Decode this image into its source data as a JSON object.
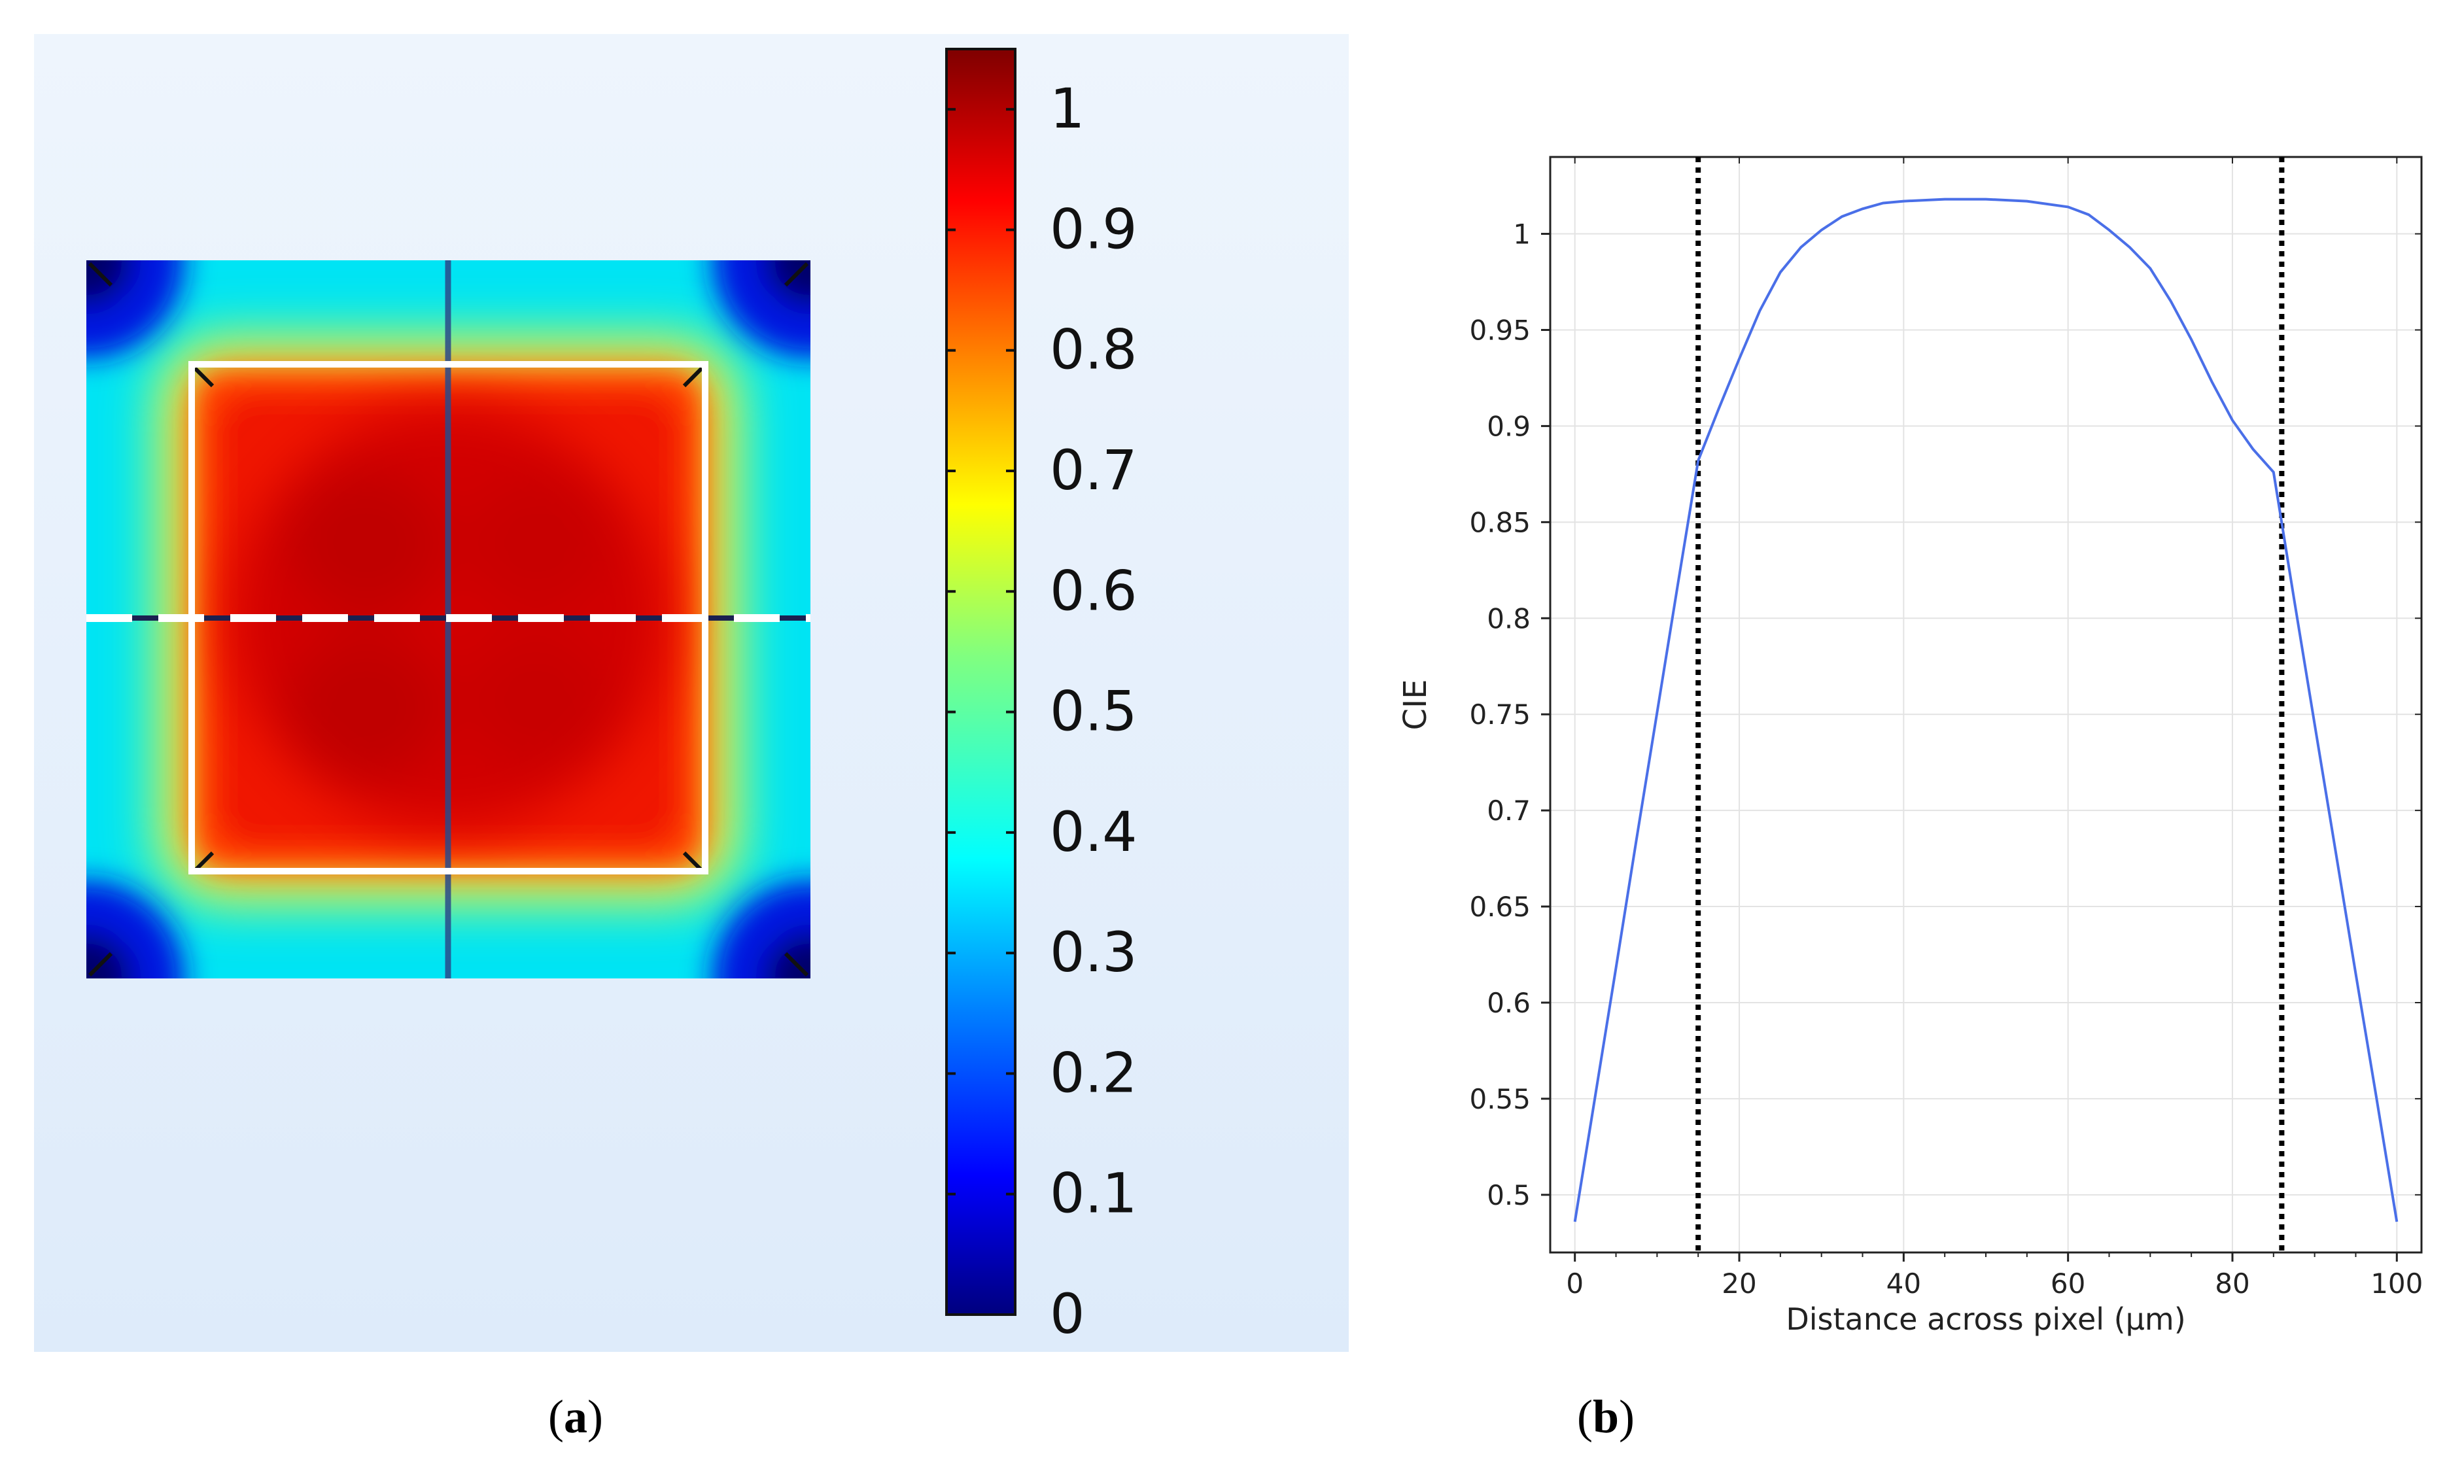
{
  "captions": {
    "a_open": "(",
    "a_letter": "a",
    "a_close": ")",
    "b_open": "(",
    "b_letter": "b",
    "b_close": ")"
  },
  "chart_data": [
    {
      "type": "heatmap",
      "panel": "a",
      "description_visible": "2D color map of a square pixel with colorbar",
      "colormap": [
        "#00007f",
        "#0000ff",
        "#0080ff",
        "#00ffff",
        "#80ff80",
        "#ffff00",
        "#ff8000",
        "#ff0000",
        "#7f0000"
      ],
      "colorbar": {
        "range": [
          0,
          1.05
        ],
        "ticks": [
          0,
          0.1,
          0.2,
          0.3,
          0.4,
          0.5,
          0.6,
          0.7,
          0.8,
          0.9,
          1
        ],
        "tick_labels": [
          "0",
          "0.1",
          "0.2",
          "0.3",
          "0.4",
          "0.5",
          "0.6",
          "0.7",
          "0.8",
          "0.9",
          "1"
        ]
      },
      "background_color": "#e6f0fc",
      "overlay_color": "#ffffff",
      "center_line_color": "#2a4a8a"
    },
    {
      "type": "line",
      "panel": "b",
      "title": "",
      "xlabel": "Distance across pixel (µm)",
      "ylabel": "CIE",
      "xlim": [
        -3,
        103
      ],
      "ylim": [
        0.47,
        1.04
      ],
      "xticks": [
        0,
        20,
        40,
        60,
        80,
        100
      ],
      "xtick_labels": [
        "0",
        "20",
        "40",
        "60",
        "80",
        "100"
      ],
      "yticks": [
        0.5,
        0.55,
        0.6,
        0.65,
        0.7,
        0.75,
        0.8,
        0.85,
        0.9,
        0.95,
        1
      ],
      "ytick_labels": [
        "0.5",
        "0.55",
        "0.6",
        "0.65",
        "0.7",
        "0.75",
        "0.8",
        "0.85",
        "0.9",
        "0.95",
        "1"
      ],
      "grid": true,
      "line_color": "#4a6fe8",
      "series": [
        {
          "x": [
            0,
            2.5,
            5,
            7.5,
            10,
            12.5,
            15,
            17.5,
            20,
            22.5,
            25,
            27.5,
            30,
            32.5,
            35,
            37.5,
            40,
            45,
            50,
            55,
            60,
            62.5,
            65,
            67.5,
            70,
            72.5,
            75,
            77.5,
            80,
            82.5,
            85,
            87.5,
            90,
            92.5,
            95,
            97.5,
            100
          ],
          "y": [
            0.486,
            0.552,
            0.618,
            0.685,
            0.751,
            0.817,
            0.882,
            0.909,
            0.935,
            0.96,
            0.98,
            0.993,
            1.002,
            1.009,
            1.013,
            1.016,
            1.017,
            1.018,
            1.018,
            1.017,
            1.014,
            1.01,
            1.002,
            0.993,
            0.982,
            0.965,
            0.945,
            0.923,
            0.903,
            0.888,
            0.876,
            0.81,
            0.745,
            0.68,
            0.615,
            0.551,
            0.486
          ]
        }
      ],
      "annotations": {
        "vertical_dotted_lines_x": [
          15,
          86
        ]
      }
    }
  ]
}
